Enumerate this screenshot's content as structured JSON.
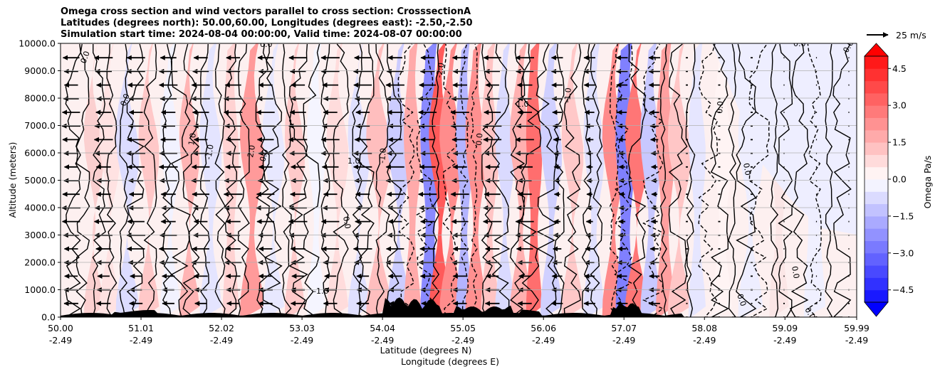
{
  "chart_data": {
    "type": "heatmap",
    "title_lines": [
      "Omega cross section and wind vectors parallel to cross section: CrosssectionA",
      "Latitudes (degrees north): 50.00,60.00, Longitudes (degrees east): -2.50,-2.50",
      "Simulation start time: 2024-08-04 00:00:00, Valid time: 2024-08-07 00:00:00"
    ],
    "ylabel": "Altitude (meters)",
    "xlabel_line1": "Latitude (degrees N)",
    "xlabel_line2": "Longitude (degrees E)",
    "ylim": [
      0,
      10000
    ],
    "y_ticks": [
      "0.0",
      "1000.0",
      "2000.0",
      "3000.0",
      "4000.0",
      "5000.0",
      "6000.0",
      "7000.0",
      "8000.0",
      "9000.0",
      "10000.0"
    ],
    "x_ticks_lat": [
      "50.00",
      "51.01",
      "52.02",
      "53.03",
      "54.04",
      "55.05",
      "56.06",
      "57.07",
      "58.08",
      "59.09",
      "59.99"
    ],
    "x_ticks_lon": [
      "-2.49",
      "-2.49",
      "-2.49",
      "-2.49",
      "-2.49",
      "-2.49",
      "-2.49",
      "-2.49",
      "-2.49",
      "-2.49",
      "-2.49"
    ],
    "x_tick_values": [
      50.0,
      51.01,
      52.02,
      53.03,
      54.04,
      55.05,
      56.06,
      57.07,
      58.08,
      59.09,
      59.99
    ],
    "xlim": [
      50.0,
      59.99
    ],
    "colorbar_label": "Omega Pa/s",
    "colorbar_ticks": [
      "4.5",
      "3.0",
      "1.5",
      "0.0",
      "−1.5",
      "−3.0",
      "−4.5"
    ],
    "colorbar_tick_values": [
      4.5,
      3.0,
      1.5,
      0.0,
      -1.5,
      -3.0,
      -4.5
    ],
    "colorbar_range": [
      -5.0,
      5.0
    ],
    "quiver_key_label": "25 m/s",
    "contour_labels": [
      "0.0",
      "1.0",
      "-1.0",
      "2.0",
      "-2.0"
    ],
    "grid": true,
    "colors": {
      "positive": "#ff0000",
      "negative": "#0000ff",
      "terrain": "#000000"
    }
  }
}
